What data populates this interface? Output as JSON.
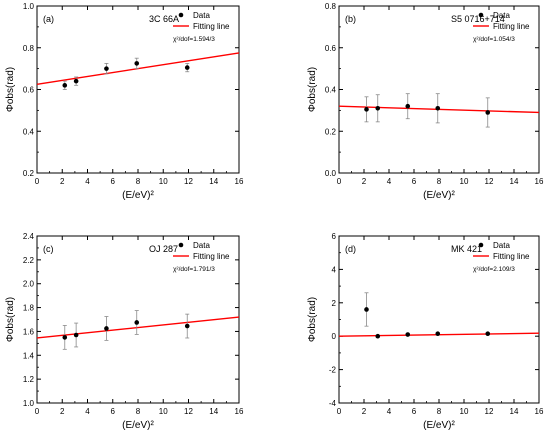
{
  "chart_data": [
    {
      "type": "scatter",
      "panel_label": "(a)",
      "source_name": "3C 66A",
      "chi2_label": "χ²/dof=1.594/3",
      "xlabel": "(E/eV)²",
      "ylabel": "Φobs(rad)",
      "xlim": [
        0,
        16
      ],
      "ylim": [
        0.2,
        1.0
      ],
      "xticks": [
        0,
        2,
        4,
        6,
        8,
        10,
        12,
        14,
        16
      ],
      "yticks": [
        0.2,
        0.4,
        0.6,
        0.8,
        1.0
      ],
      "ytick_labels": [
        "0.2",
        "0.4",
        "0.6",
        "0.8",
        "1.0"
      ],
      "legend": {
        "data_label": "Data",
        "fit_label": "Fitting line",
        "position": "top-right"
      },
      "series": [
        {
          "name": "Data",
          "x": [
            2.2,
            3.1,
            5.5,
            7.9,
            11.9
          ],
          "y": [
            0.62,
            0.64,
            0.7,
            0.725,
            0.705
          ],
          "err": [
            0.02,
            0.02,
            0.025,
            0.025,
            0.02
          ]
        }
      ],
      "fit": {
        "x": [
          0,
          16
        ],
        "y": [
          0.625,
          0.775
        ]
      }
    },
    {
      "type": "scatter",
      "panel_label": "(b)",
      "source_name": "S5 0716+714",
      "chi2_label": "χ²/dof=1.054/3",
      "xlabel": "(E/eV)²",
      "ylabel": "Φobs(rad)",
      "xlim": [
        0,
        16
      ],
      "ylim": [
        0.0,
        0.8
      ],
      "xticks": [
        0,
        2,
        4,
        6,
        8,
        10,
        12,
        14,
        16
      ],
      "yticks": [
        0.0,
        0.2,
        0.4,
        0.6,
        0.8
      ],
      "ytick_labels": [
        "0.0",
        "0.2",
        "0.4",
        "0.6",
        "0.8"
      ],
      "legend": {
        "data_label": "Data",
        "fit_label": "Fitting line",
        "position": "top-right"
      },
      "series": [
        {
          "name": "Data",
          "x": [
            2.2,
            3.1,
            5.5,
            7.9,
            11.9
          ],
          "y": [
            0.305,
            0.31,
            0.32,
            0.31,
            0.29
          ],
          "err": [
            0.06,
            0.065,
            0.06,
            0.07,
            0.07
          ]
        }
      ],
      "fit": {
        "x": [
          0,
          16
        ],
        "y": [
          0.32,
          0.29
        ]
      }
    },
    {
      "type": "scatter",
      "panel_label": "(c)",
      "source_name": "OJ 287",
      "chi2_label": "χ²/dof=1.791/3",
      "xlabel": "(E/eV)²",
      "ylabel": "Φobs(rad)",
      "xlim": [
        0,
        16
      ],
      "ylim": [
        1.0,
        2.4
      ],
      "xticks": [
        0,
        2,
        4,
        6,
        8,
        10,
        12,
        14,
        16
      ],
      "yticks": [
        1.0,
        1.2,
        1.4,
        1.6,
        1.8,
        2.0,
        2.2,
        2.4
      ],
      "ytick_labels": [
        "1.0",
        "1.2",
        "1.4",
        "1.6",
        "1.8",
        "2.0",
        "2.2",
        "2.4"
      ],
      "legend": {
        "data_label": "Data",
        "fit_label": "Fitting line",
        "position": "top-right"
      },
      "series": [
        {
          "name": "Data",
          "x": [
            2.2,
            3.1,
            5.5,
            7.9,
            11.9
          ],
          "y": [
            1.55,
            1.57,
            1.625,
            1.675,
            1.645
          ],
          "err": [
            0.1,
            0.1,
            0.1,
            0.1,
            0.1
          ]
        }
      ],
      "fit": {
        "x": [
          0,
          16
        ],
        "y": [
          1.545,
          1.72
        ]
      }
    },
    {
      "type": "scatter",
      "panel_label": "(d)",
      "source_name": "MK 421",
      "chi2_label": "χ²/dof=2.109/3",
      "xlabel": "(E/eV)²",
      "ylabel": "Φobs(rad)",
      "xlim": [
        0,
        16
      ],
      "ylim": [
        -4,
        6
      ],
      "xticks": [
        0,
        2,
        4,
        6,
        8,
        10,
        12,
        14,
        16
      ],
      "yticks": [
        -4,
        -2,
        0,
        2,
        4,
        6
      ],
      "ytick_labels": [
        "-4",
        "-2",
        "0",
        "2",
        "4",
        "6"
      ],
      "legend": {
        "data_label": "Data",
        "fit_label": "Fitting line",
        "position": "top-right"
      },
      "series": [
        {
          "name": "Data",
          "x": [
            2.2,
            3.1,
            5.5,
            7.9,
            11.9
          ],
          "y": [
            1.6,
            0.0,
            0.1,
            0.15,
            0.15
          ],
          "err": [
            1.0,
            0.05,
            0.05,
            0.05,
            0.05
          ]
        }
      ],
      "fit": {
        "x": [
          0,
          16
        ],
        "y": [
          0.0,
          0.18
        ]
      }
    }
  ]
}
